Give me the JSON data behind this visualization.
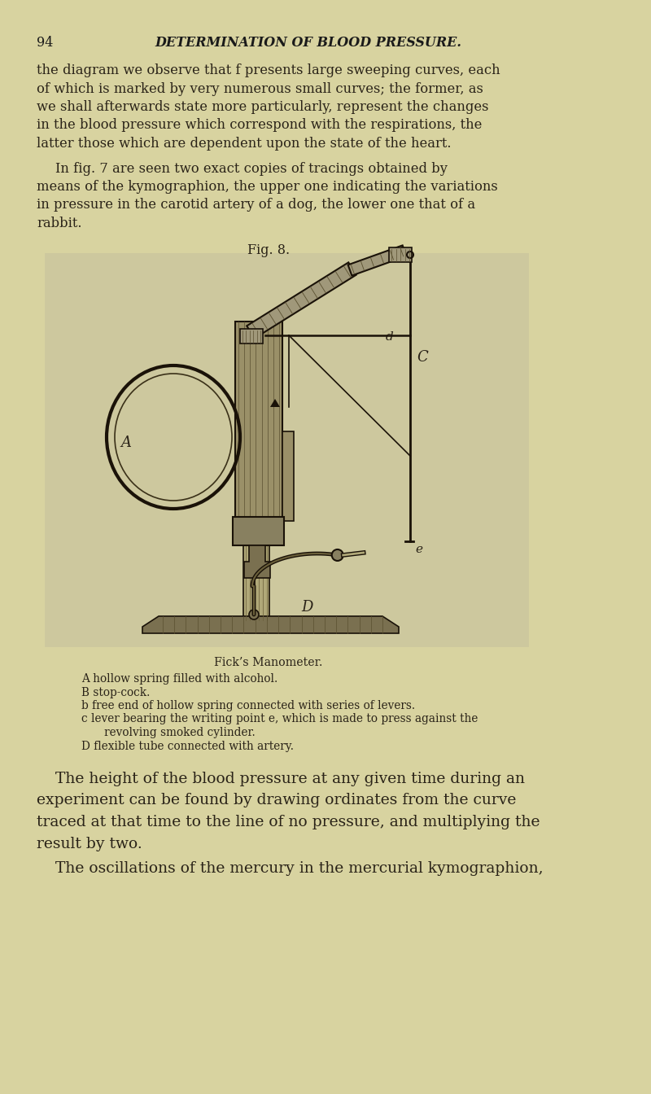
{
  "page_bg": "#d8d3a0",
  "text_color": "#2a2318",
  "header_color": "#1a1a1a",
  "page_number": "94",
  "header_text": "DETERMINATION OF BLOOD PRESSURE.",
  "para1_lines": [
    "the diagram we observe that f presents large sweeping curves, each",
    "of which is marked by very numerous small curves; the former, as",
    "we shall afterwards state more particularly, represent the changes",
    "in the blood pressure which correspond with the respirations, the",
    "latter those which are dependent upon the state of the heart."
  ],
  "para2_lines": [
    "In fig. 7 are seen two exact copies of tracings obtained by",
    "means of the kymographion, the upper one indicating the variations",
    "in pressure in the carotid artery of a dog, the lower one that of a",
    "rabbit."
  ],
  "fig_label": "Fig. 8.",
  "caption_title": "Fick’s Manometer.",
  "caption_A": "A hollow spring filled with alcohol.",
  "caption_B": "B stop-cock.",
  "caption_b": "b free end of hollow spring connected with series of levers.",
  "caption_c1": "c lever bearing the writing point e, which is made to press against the",
  "caption_c2": "   revolving smoked cylinder.",
  "caption_D": "D flexible tube connected with artery.",
  "para3_lines": [
    "The height of the blood pressure at any given time during an",
    "experiment can be found by drawing ordinates from the curve",
    "traced at that time to the line of no pressure, and multiplying the",
    "result by two."
  ],
  "para4": "The oscillations of the mercury in the mercurial kymographion,",
  "illus_bg": "#ccc89a",
  "dark": "#1a1208",
  "mid": "#4a3d20",
  "light_gray": "#888060"
}
